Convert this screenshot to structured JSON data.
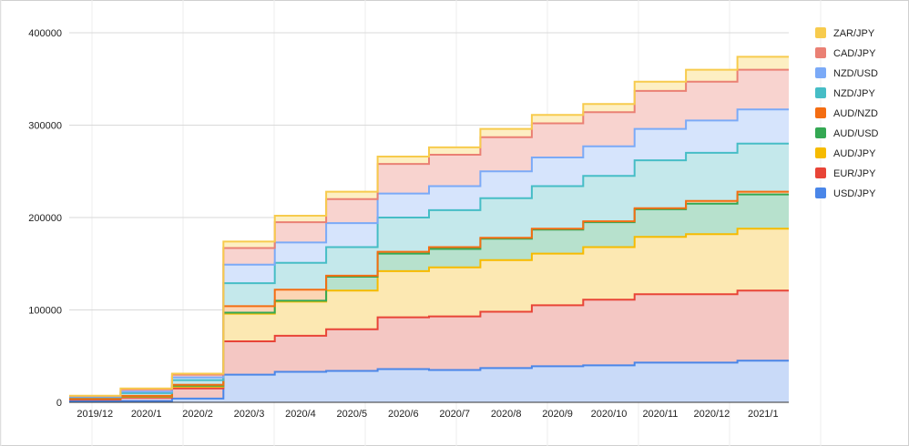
{
  "chart_data": {
    "type": "area",
    "subtype": "stacked-stepped",
    "title": "",
    "xlabel": "",
    "ylabel": "",
    "ylim": [
      0,
      400000
    ],
    "yticks": [
      0,
      100000,
      200000,
      300000,
      400000
    ],
    "grid": true,
    "legend_position": "right",
    "categories": [
      "2019/12",
      "2020/1",
      "2020/2",
      "2020/3",
      "2020/4",
      "2020/5",
      "2020/6",
      "2020/7",
      "2020/8",
      "2020/9",
      "2020/10",
      "2020/11",
      "2020/12",
      "2021/1"
    ],
    "series": [
      {
        "name": "USD/JPY",
        "color": "#4a86e8",
        "fill": "#c9daf8",
        "values": [
          1000,
          1500,
          4000,
          30000,
          33000,
          34000,
          36000,
          35000,
          37000,
          39000,
          40000,
          43000,
          43000,
          45000
        ]
      },
      {
        "name": "EUR/JPY",
        "color": "#e84437",
        "fill": "#f4c7c3",
        "values": [
          2000,
          3500,
          11000,
          36000,
          39000,
          45000,
          56000,
          58000,
          61000,
          66000,
          71000,
          74000,
          74000,
          76000
        ]
      },
      {
        "name": "AUD/JPY",
        "color": "#f6bb00",
        "fill": "#fce8b2",
        "values": [
          800,
          1000,
          2000,
          30000,
          37000,
          42000,
          50000,
          53000,
          56000,
          56000,
          57000,
          62000,
          65000,
          67000
        ]
      },
      {
        "name": "AUD/USD",
        "color": "#34a853",
        "fill": "#b7e1cd",
        "values": [
          200,
          500,
          1000,
          1000,
          1000,
          15000,
          19000,
          20000,
          23000,
          26000,
          27000,
          30000,
          33000,
          37000
        ]
      },
      {
        "name": "AUD/NZD",
        "color": "#f46d12",
        "fill": "#fcd5b4",
        "values": [
          200,
          500,
          1000,
          7000,
          12000,
          1000,
          2000,
          2000,
          1000,
          1000,
          1000,
          1000,
          3000,
          3000
        ]
      },
      {
        "name": "NZD/JPY",
        "color": "#46bdc6",
        "fill": "#c4e8eb",
        "values": [
          1500,
          3000,
          5000,
          25000,
          29000,
          31000,
          37000,
          40000,
          43000,
          46000,
          49000,
          52000,
          52000,
          52000
        ]
      },
      {
        "name": "NZD/USD",
        "color": "#7baaf7",
        "fill": "#d6e4fc",
        "values": [
          500,
          1500,
          3000,
          20000,
          22000,
          26000,
          26000,
          26000,
          29000,
          31000,
          32000,
          34000,
          35000,
          37000
        ]
      },
      {
        "name": "CAD/JPY",
        "color": "#ea8074",
        "fill": "#f8d3cf",
        "values": [
          700,
          2500,
          3000,
          18000,
          22000,
          26000,
          32000,
          34000,
          37000,
          37000,
          37000,
          41000,
          42000,
          43000
        ]
      },
      {
        "name": "ZAR/JPY",
        "color": "#f7cb4d",
        "fill": "#fdefc3",
        "values": [
          300,
          1000,
          1000,
          7000,
          7000,
          8000,
          8000,
          8000,
          9000,
          9000,
          9000,
          10000,
          13000,
          14000
        ]
      }
    ]
  }
}
